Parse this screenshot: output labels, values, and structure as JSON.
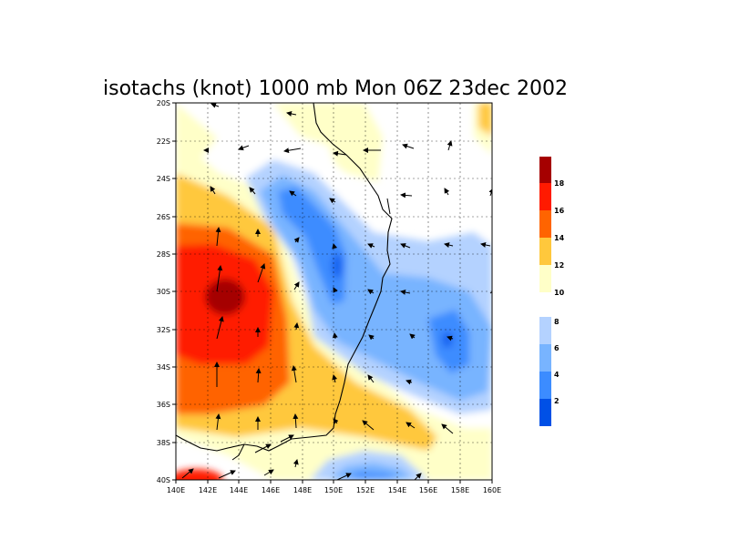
{
  "title": "isotachs (knot) 1000 mb Mon 06Z 23dec 2002",
  "lat_ticks": [
    "20S",
    "22S",
    "24S",
    "26S",
    "28S",
    "30S",
    "32S",
    "34S",
    "36S",
    "38S",
    "40S"
  ],
  "lon_ticks": [
    "140E",
    "142E",
    "144E",
    "146E",
    "148E",
    "150E",
    "152E",
    "154E",
    "156E",
    "158E",
    "160E"
  ],
  "colorbar_upper": {
    "labels": [
      "18",
      "16",
      "14",
      "12",
      "10"
    ],
    "colors": [
      "#a50000",
      "#ff1a00",
      "#ff6400",
      "#ffc83c",
      "#ffffc8",
      "#ffffff"
    ]
  },
  "colorbar_lower": {
    "labels": [
      "8",
      "6",
      "4",
      "2"
    ],
    "colors": [
      "#b4d2ff",
      "#78b4ff",
      "#3c8cff",
      "#1464f0",
      "#0050e6"
    ]
  },
  "map_extent": {
    "lon": [
      140,
      160
    ],
    "lat": [
      -40,
      -20
    ]
  }
}
